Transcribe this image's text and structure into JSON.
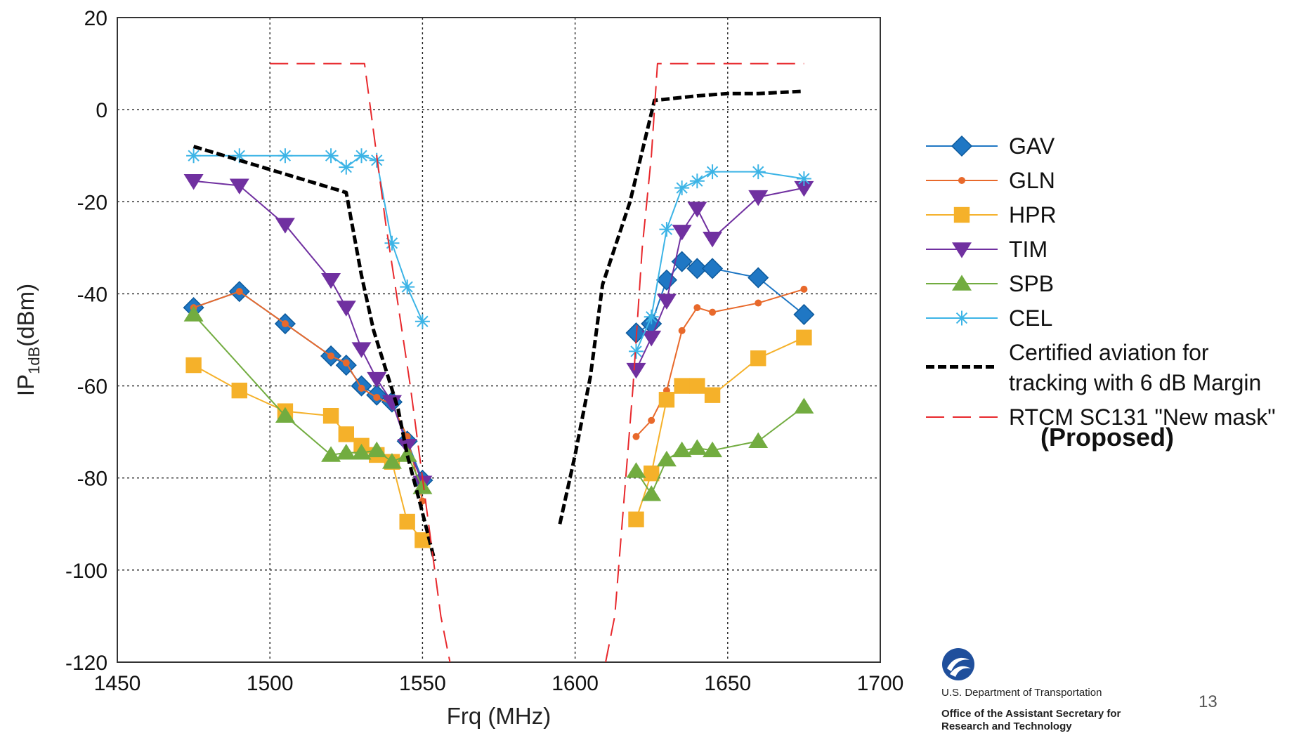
{
  "chart_data": {
    "type": "line",
    "title": "",
    "xlabel": "Frq (MHz)",
    "ylabel_main": "IP",
    "ylabel_sub": "1dB",
    "ylabel_unit": "(dBm)",
    "xlim": [
      1450,
      1700
    ],
    "ylim": [
      -120,
      20
    ],
    "xticks": [
      1450,
      1500,
      1550,
      1600,
      1650,
      1700
    ],
    "yticks": [
      -120,
      -100,
      -80,
      -60,
      -40,
      -20,
      0,
      20
    ],
    "grid": true,
    "legend_position": "right",
    "series": [
      {
        "name": "GAV",
        "color": "#1f77c4",
        "marker": "diamond",
        "style": "solid",
        "x": [
          1475,
          1490,
          1505,
          1520,
          1525,
          1530,
          1535,
          1540,
          1545,
          1550,
          1620,
          1625,
          1630,
          1635,
          1640,
          1645,
          1660,
          1675
        ],
        "y": [
          -43,
          -39.5,
          -46.5,
          -53.5,
          -55.5,
          -60,
          -62,
          -63.5,
          -72,
          -80.5,
          -48.5,
          -46.5,
          -37,
          -33,
          -34.5,
          -34.5,
          -36.5,
          -44.5
        ]
      },
      {
        "name": "GLN",
        "color": "#e8692b",
        "marker": "dot",
        "style": "solid",
        "x": [
          1475,
          1490,
          1505,
          1520,
          1525,
          1530,
          1535,
          1540,
          1545,
          1550,
          1620,
          1625,
          1630,
          1635,
          1640,
          1645,
          1660,
          1675
        ],
        "y": [
          -43,
          -39.5,
          -46.5,
          -53.5,
          -55,
          -60.5,
          -62.5,
          -64,
          -71,
          -85,
          -71,
          -67.5,
          -61,
          -48,
          -43,
          -44,
          -42,
          -39
        ]
      },
      {
        "name": "HPR",
        "color": "#f5b12a",
        "marker": "square",
        "style": "solid",
        "x": [
          1475,
          1490,
          1505,
          1520,
          1525,
          1530,
          1535,
          1540,
          1545,
          1550,
          1620,
          1625,
          1630,
          1635,
          1640,
          1645,
          1660,
          1675
        ],
        "y": [
          -55.5,
          -61,
          -65.5,
          -66.5,
          -70.5,
          -73,
          -75,
          -76.5,
          -89.5,
          -93.5,
          -89,
          -79,
          -63,
          -60,
          -60,
          -62,
          -54,
          -49.5
        ]
      },
      {
        "name": "TIM",
        "color": "#7030a0",
        "marker": "triangle-down",
        "style": "solid",
        "x": [
          1475,
          1490,
          1505,
          1520,
          1525,
          1530,
          1535,
          1540,
          1545,
          1550,
          1620,
          1625,
          1630,
          1635,
          1640,
          1645,
          1660,
          1675
        ],
        "y": [
          -15.5,
          -16.5,
          -25,
          -37,
          -43,
          -52,
          -58.5,
          -63.5,
          -73,
          -81,
          -56.5,
          -49.5,
          -41.5,
          -26.5,
          -21.5,
          -28,
          -19,
          -17
        ]
      },
      {
        "name": "SPB",
        "color": "#72ac40",
        "marker": "triangle-up",
        "style": "solid",
        "x": [
          1475,
          1505,
          1520,
          1525,
          1530,
          1535,
          1540,
          1545,
          1550,
          1620,
          1625,
          1630,
          1635,
          1640,
          1645,
          1660,
          1675
        ],
        "y": [
          -44.5,
          -66.5,
          -75,
          -74.5,
          -74.5,
          -74,
          -76.5,
          -75,
          -82,
          -78.5,
          -83.5,
          -76,
          -74,
          -73.5,
          -74,
          -72,
          -64.5
        ]
      },
      {
        "name": "CEL",
        "color": "#3cb4e6",
        "marker": "asterisk",
        "style": "solid",
        "x": [
          1475,
          1490,
          1505,
          1520,
          1525,
          1530,
          1535,
          1540,
          1545,
          1550,
          1620,
          1625,
          1630,
          1635,
          1640,
          1645,
          1660,
          1675
        ],
        "y": [
          -10,
          -10,
          -10,
          -10,
          -12.5,
          -10,
          -11,
          -29,
          -38.5,
          -46,
          -52.5,
          -45,
          -26,
          -17,
          -15.5,
          -13.5,
          -13.5,
          -15
        ]
      },
      {
        "name": "Certified aviation for tracking with 6 dB Margin",
        "color": "#000000",
        "marker": "none",
        "style": "dashed-thick",
        "x": [
          1475,
          1525,
          1530,
          1534,
          1542,
          1545,
          1549,
          1554,
          1595,
          1600,
          1605,
          1609,
          1618,
          1626,
          1640,
          1650,
          1660,
          1675
        ],
        "y": [
          -8,
          -18,
          -36,
          -48,
          -65,
          -75,
          -85,
          -98,
          -90,
          -75,
          -58,
          -38,
          -20,
          2,
          3,
          3.5,
          3.5,
          4
        ]
      },
      {
        "name": "RTCM SC131 \"New mask\"",
        "color": "#e8282c",
        "marker": "none",
        "style": "dashed",
        "x": [
          1500,
          1531,
          1534,
          1538,
          1541,
          1546,
          1550,
          1553,
          1556,
          1559,
          1610,
          1613,
          1616,
          1619,
          1622,
          1625,
          1627,
          1675
        ],
        "y": [
          10,
          10,
          -5,
          -25,
          -38,
          -60,
          -80,
          -95,
          -110,
          -120,
          -120,
          -110,
          -85,
          -60,
          -30,
          -10,
          10,
          10
        ]
      }
    ],
    "legend": [
      {
        "label_lines": [
          "GAV"
        ]
      },
      {
        "label_lines": [
          "GLN"
        ]
      },
      {
        "label_lines": [
          "HPR"
        ]
      },
      {
        "label_lines": [
          "TIM"
        ]
      },
      {
        "label_lines": [
          "SPB"
        ]
      },
      {
        "label_lines": [
          "CEL"
        ]
      },
      {
        "label_lines": [
          "Certified aviation for",
          "tracking with 6 dB Margin"
        ]
      },
      {
        "label_lines": [
          "RTCM SC131 \"New mask\""
        ]
      }
    ],
    "annotation": "(Proposed)"
  },
  "footer": {
    "agency_name": "U.S. Department of Transportation",
    "office_line1": "Office of the Assistant Secretary for",
    "office_line2": "Research and Technology",
    "slide_number": "13",
    "logo_color": "#1f4f9c"
  }
}
